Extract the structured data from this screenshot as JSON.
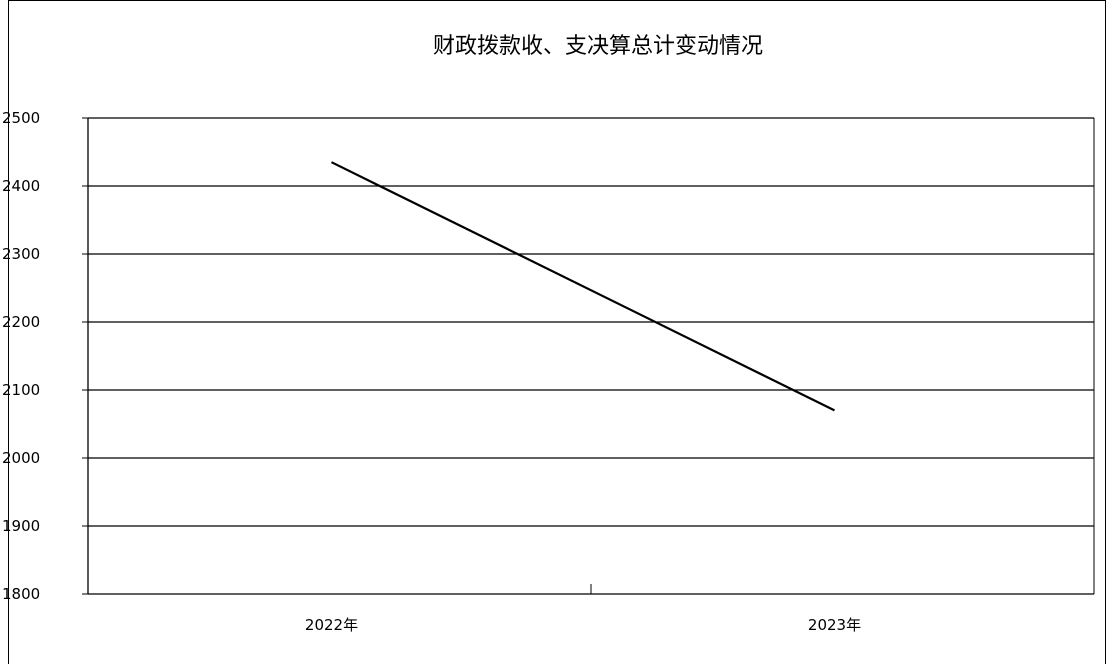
{
  "chart_data": {
    "type": "line",
    "title": "财政拨款收、支决算总计变动情况",
    "categories": [
      "2022年",
      "2023年"
    ],
    "series": [
      {
        "values": [
          2435,
          2070
        ],
        "color": "#000000"
      }
    ],
    "yticks": [
      "1800",
      "1900",
      "2000",
      "2100",
      "2200",
      "2300",
      "2400",
      "2500"
    ],
    "ylim": [
      1800,
      2500
    ],
    "grid": true,
    "xlabel": "",
    "ylabel": ""
  }
}
